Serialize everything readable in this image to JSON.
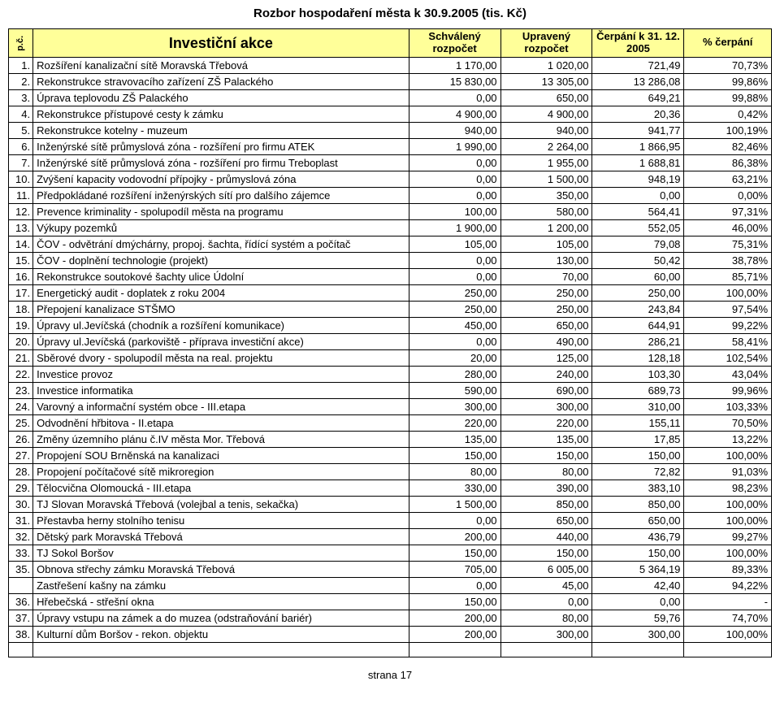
{
  "title": "Rozbor hospodaření města k 30.9.2005 (tis. Kč)",
  "footer": "strana 17",
  "colors": {
    "header_bg": "#ffff99",
    "border": "#000000",
    "text": "#000000",
    "bg": "#ffffff"
  },
  "columns": {
    "pc": "p.č.",
    "name": "Investiční akce",
    "schvaleny": "Schválený rozpočet",
    "upraveny": "Upravený rozpočet",
    "cerpani_k": "Čerpání k 31. 12. 2005",
    "pct": "% čerpání"
  },
  "rows": [
    {
      "n": "1.",
      "name": "Rozšíření kanalizační sítě Moravská Třebová",
      "a": "1 170,00",
      "b": "1 020,00",
      "c": "721,49",
      "d": "70,73%"
    },
    {
      "n": "2.",
      "name": "Rekonstrukce stravovacího zařízení ZŠ Palackého",
      "a": "15 830,00",
      "b": "13 305,00",
      "c": "13 286,08",
      "d": "99,86%"
    },
    {
      "n": "3.",
      "name": "Úprava teplovodu ZŠ Palackého",
      "a": "0,00",
      "b": "650,00",
      "c": "649,21",
      "d": "99,88%"
    },
    {
      "n": "4.",
      "name": "Rekonstrukce přístupové cesty k zámku",
      "a": "4 900,00",
      "b": "4 900,00",
      "c": "20,36",
      "d": "0,42%"
    },
    {
      "n": "5.",
      "name": "Rekonstrukce kotelny - muzeum",
      "a": "940,00",
      "b": "940,00",
      "c": "941,77",
      "d": "100,19%"
    },
    {
      "n": "6.",
      "name": "Inženýrské sítě průmyslová zóna - rozšíření pro firmu ATEK",
      "a": "1 990,00",
      "b": "2 264,00",
      "c": "1 866,95",
      "d": "82,46%"
    },
    {
      "n": "7.",
      "name": "Inženýrské sítě průmyslová zóna - rozšíření pro firmu Treboplast",
      "a": "0,00",
      "b": "1 955,00",
      "c": "1 688,81",
      "d": "86,38%"
    },
    {
      "n": "10.",
      "name": "Zvýšení kapacity vodovodní přípojky - průmyslová zóna",
      "a": "0,00",
      "b": "1 500,00",
      "c": "948,19",
      "d": "63,21%"
    },
    {
      "n": "11.",
      "name": "Předpokládané rozšíření inženýrských sítí pro dalšího zájemce",
      "a": "0,00",
      "b": "350,00",
      "c": "0,00",
      "d": "0,00%"
    },
    {
      "n": "12.",
      "name": "Prevence kriminality - spolupodíl města na programu",
      "a": "100,00",
      "b": "580,00",
      "c": "564,41",
      "d": "97,31%"
    },
    {
      "n": "13.",
      "name": "Výkupy pozemků",
      "a": "1 900,00",
      "b": "1 200,00",
      "c": "552,05",
      "d": "46,00%"
    },
    {
      "n": "14.",
      "name": "ČOV - odvětrání dmýchárny, propoj. šachta, řídící systém a počítač",
      "a": "105,00",
      "b": "105,00",
      "c": "79,08",
      "d": "75,31%"
    },
    {
      "n": "15.",
      "name": "ČOV - doplnění technologie (projekt)",
      "a": "0,00",
      "b": "130,00",
      "c": "50,42",
      "d": "38,78%"
    },
    {
      "n": "16.",
      "name": "Rekonstrukce soutokové šachty ulice Údolní",
      "a": "0,00",
      "b": "70,00",
      "c": "60,00",
      "d": "85,71%"
    },
    {
      "n": "17.",
      "name": "Energetický audit - doplatek z roku 2004",
      "a": "250,00",
      "b": "250,00",
      "c": "250,00",
      "d": "100,00%"
    },
    {
      "n": "18.",
      "name": "Přepojení kanalizace STŠMO",
      "a": "250,00",
      "b": "250,00",
      "c": "243,84",
      "d": "97,54%"
    },
    {
      "n": "19.",
      "name": "Úpravy ul.Jevíčská (chodník a rozšíření komunikace)",
      "a": "450,00",
      "b": "650,00",
      "c": "644,91",
      "d": "99,22%"
    },
    {
      "n": "20.",
      "name": "Úpravy ul.Jevíčská (parkoviště - příprava investiční akce)",
      "a": "0,00",
      "b": "490,00",
      "c": "286,21",
      "d": "58,41%"
    },
    {
      "n": "21.",
      "name": "Sběrové dvory - spolupodíl města na real. projektu",
      "a": "20,00",
      "b": "125,00",
      "c": "128,18",
      "d": "102,54%"
    },
    {
      "n": "22.",
      "name": "Investice provoz",
      "a": "280,00",
      "b": "240,00",
      "c": "103,30",
      "d": "43,04%"
    },
    {
      "n": "23.",
      "name": "Investice informatika",
      "a": "590,00",
      "b": "690,00",
      "c": "689,73",
      "d": "99,96%"
    },
    {
      "n": "24.",
      "name": "Varovný a informační systém obce -  III.etapa",
      "a": "300,00",
      "b": "300,00",
      "c": "310,00",
      "d": "103,33%"
    },
    {
      "n": "25.",
      "name": "Odvodnění hřbitova - II.etapa",
      "a": "220,00",
      "b": "220,00",
      "c": "155,11",
      "d": "70,50%"
    },
    {
      "n": "26.",
      "name": "Změny územního plánu č.IV města Mor. Třebová",
      "a": "135,00",
      "b": "135,00",
      "c": "17,85",
      "d": "13,22%"
    },
    {
      "n": "27.",
      "name": "Propojení SOU Brněnská na kanalizaci",
      "a": "150,00",
      "b": "150,00",
      "c": "150,00",
      "d": "100,00%"
    },
    {
      "n": "28.",
      "name": "Propojení počítačové sítě mikroregion",
      "a": "80,00",
      "b": "80,00",
      "c": "72,82",
      "d": "91,03%"
    },
    {
      "n": "29.",
      "name": "Tělocvična Olomoucká  - III.etapa",
      "a": "330,00",
      "b": "390,00",
      "c": "383,10",
      "d": "98,23%"
    },
    {
      "n": "30.",
      "name": "TJ Slovan Moravská Třebová (volejbal a tenis, sekačka)",
      "a": "1 500,00",
      "b": "850,00",
      "c": "850,00",
      "d": "100,00%"
    },
    {
      "n": "31.",
      "name": "Přestavba herny stolního tenisu",
      "a": "0,00",
      "b": "650,00",
      "c": "650,00",
      "d": "100,00%"
    },
    {
      "n": "32.",
      "name": "Dětský park Moravská Třebová",
      "a": "200,00",
      "b": "440,00",
      "c": "436,79",
      "d": "99,27%"
    },
    {
      "n": "33.",
      "name": "TJ Sokol Boršov",
      "a": "150,00",
      "b": "150,00",
      "c": "150,00",
      "d": "100,00%"
    },
    {
      "n": "35.",
      "name": "Obnova střechy zámku Moravská Třebová",
      "a": "705,00",
      "b": "6 005,00",
      "c": "5 364,19",
      "d": "89,33%"
    },
    {
      "n": "",
      "name": "Zastřešení kašny na zámku",
      "a": "0,00",
      "b": "45,00",
      "c": "42,40",
      "d": "94,22%"
    },
    {
      "n": "36.",
      "name": "Hřebečská - střešní okna",
      "a": "150,00",
      "b": "0,00",
      "c": "0,00",
      "d": "-"
    },
    {
      "n": "37.",
      "name": "Úpravy vstupu na zámek a do muzea (odstraňování bariér)",
      "a": "200,00",
      "b": "80,00",
      "c": "59,76",
      "d": "74,70%"
    },
    {
      "n": "38.",
      "name": "Kulturní dům Boršov  - rekon. objektu",
      "a": "200,00",
      "b": "300,00",
      "c": "300,00",
      "d": "100,00%"
    }
  ]
}
